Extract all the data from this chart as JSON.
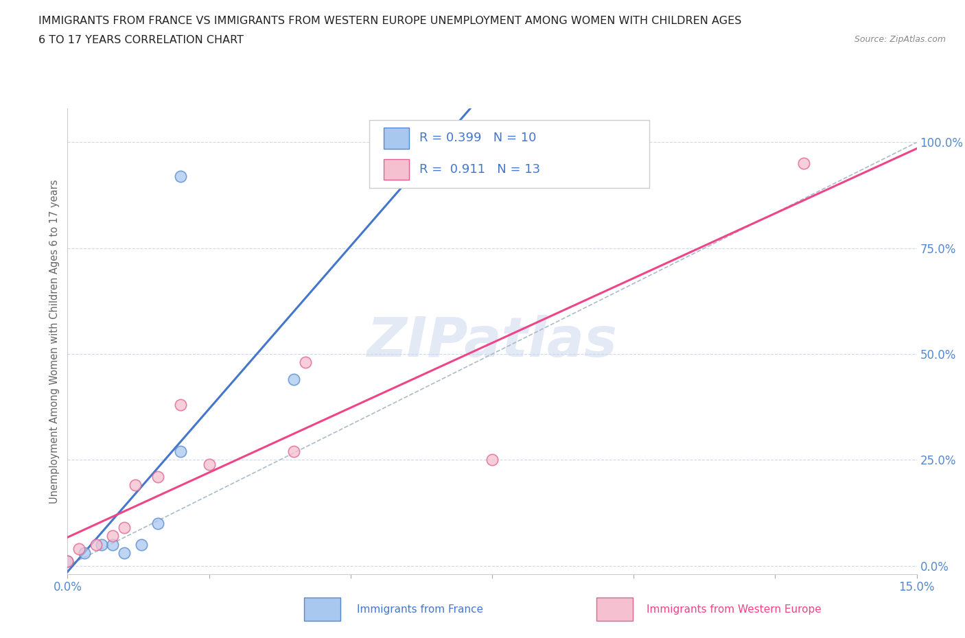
{
  "title_line1": "IMMIGRANTS FROM FRANCE VS IMMIGRANTS FROM WESTERN EUROPE UNEMPLOYMENT AMONG WOMEN WITH CHILDREN AGES",
  "title_line2": "6 TO 17 YEARS CORRELATION CHART",
  "source_text": "Source: ZipAtlas.com",
  "ylabel": "Unemployment Among Women with Children Ages 6 to 17 years",
  "xlim": [
    0.0,
    0.15
  ],
  "ylim": [
    -0.02,
    1.08
  ],
  "ytick_labels": [
    "0.0%",
    "25.0%",
    "50.0%",
    "75.0%",
    "100.0%"
  ],
  "ytick_values": [
    0.0,
    0.25,
    0.5,
    0.75,
    1.0
  ],
  "xtick_values": [
    0.0,
    0.025,
    0.05,
    0.075,
    0.1,
    0.125,
    0.15
  ],
  "xtick_labels": [
    "0.0%",
    "",
    "",
    "",
    "",
    "",
    "15.0%"
  ],
  "france_fill": "#a8c8f0",
  "france_edge": "#5588cc",
  "we_fill": "#f5c0d0",
  "we_edge": "#e06090",
  "trendline_france": "#4477cc",
  "trendline_we": "#ee4488",
  "diagonal_color": "#aabbcc",
  "R_france": 0.399,
  "N_france": 10,
  "R_we": 0.911,
  "N_we": 13,
  "france_x": [
    0.0,
    0.003,
    0.006,
    0.008,
    0.01,
    0.013,
    0.016,
    0.02,
    0.04,
    0.02
  ],
  "france_y": [
    0.01,
    0.03,
    0.05,
    0.05,
    0.03,
    0.05,
    0.1,
    0.27,
    0.44,
    0.92
  ],
  "we_x": [
    0.0,
    0.002,
    0.005,
    0.008,
    0.01,
    0.012,
    0.016,
    0.02,
    0.025,
    0.04,
    0.042,
    0.075,
    0.13
  ],
  "we_y": [
    0.01,
    0.04,
    0.05,
    0.07,
    0.09,
    0.19,
    0.21,
    0.38,
    0.24,
    0.27,
    0.48,
    0.25,
    0.95
  ],
  "watermark_text": "ZIPatlas",
  "background_color": "#ffffff",
  "grid_color": "#ccd8ee",
  "tick_color": "#5588cc",
  "ylabel_color": "#666666",
  "legend_text_color": "#4477cc",
  "bottom_legend_france_color": "#4477cc",
  "bottom_legend_we_color": "#ee4488"
}
